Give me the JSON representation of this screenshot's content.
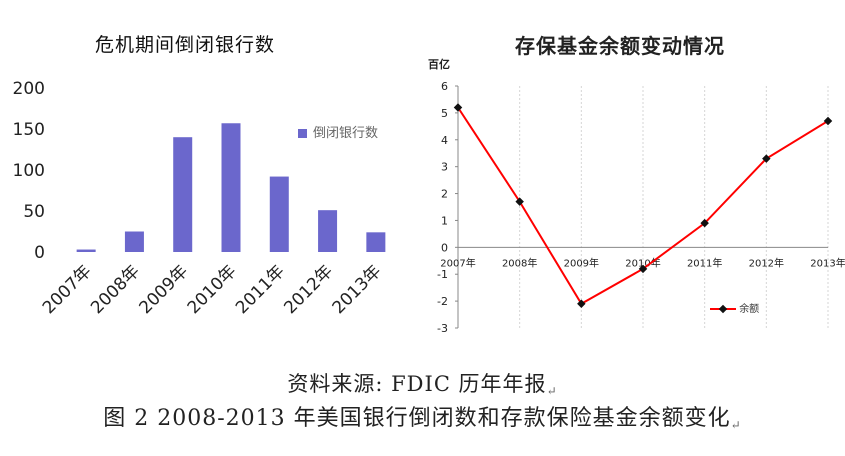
{
  "chart_data": [
    {
      "type": "bar",
      "title": "危机期间倒闭银行数",
      "categories": [
        "2007年",
        "2008年",
        "2009年",
        "2010年",
        "2011年",
        "2012年",
        "2013年"
      ],
      "series": [
        {
          "name": "倒闭银行数",
          "values": [
            3,
            25,
            140,
            157,
            92,
            51,
            24
          ]
        }
      ],
      "ylim": [
        0,
        200
      ],
      "yticks": [
        0,
        50,
        100,
        150,
        200
      ],
      "bar_color": "#6b67cc",
      "legend": "right"
    },
    {
      "type": "line",
      "title": "存保基金余额变动情况",
      "unit_label": "百亿",
      "x": [
        "2007年",
        "2008年",
        "2009年",
        "2010年",
        "2011年",
        "2012年",
        "2013年"
      ],
      "series": [
        {
          "name": "余额",
          "values": [
            5.2,
            1.7,
            -2.1,
            -0.8,
            0.9,
            3.3,
            4.7
          ]
        }
      ],
      "ylim": [
        -3,
        6
      ],
      "yticks": [
        -3,
        -2,
        -1,
        0,
        1,
        2,
        3,
        4,
        5,
        6
      ],
      "line_color": "#ff0000",
      "marker_color": "#111111",
      "grid": true,
      "legend": "bottom-right"
    }
  ],
  "captions": {
    "source": "资料来源: FDIC 历年年报",
    "figure": "图 2 2008-2013 年美国银行倒闭数和存款保险基金余额变化"
  },
  "return_mark": "↵"
}
